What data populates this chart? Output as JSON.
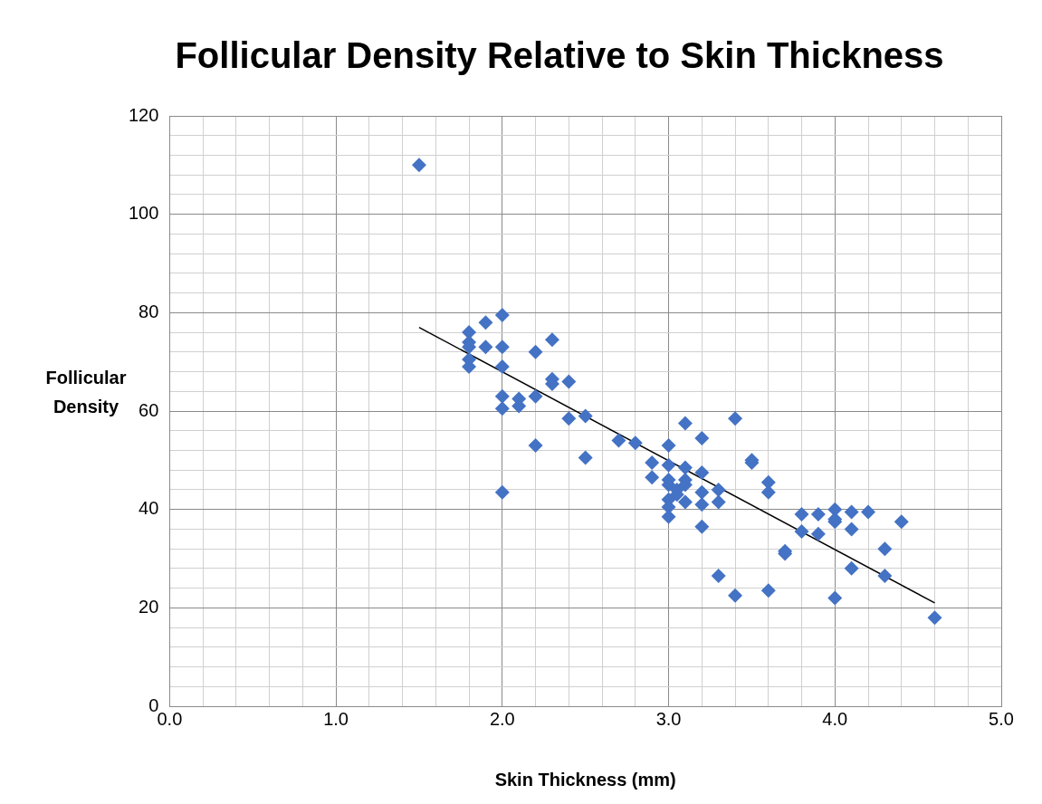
{
  "chart_data": {
    "type": "scatter",
    "title": "Follicular Density Relative to Skin Thickness",
    "xlabel": "Skin Thickness (mm)",
    "ylabel": "Follicular Density",
    "xlim": [
      0,
      5
    ],
    "ylim": [
      0,
      120
    ],
    "xticks": [
      {
        "value": 0,
        "label": "0.0"
      },
      {
        "value": 0.2,
        "label": null
      },
      {
        "value": 0.4,
        "label": null
      },
      {
        "value": 0.6,
        "label": null
      },
      {
        "value": 0.8,
        "label": null
      },
      {
        "value": 1,
        "label": "1.0"
      },
      {
        "value": 1.2,
        "label": null
      },
      {
        "value": 1.4,
        "label": null
      },
      {
        "value": 1.6,
        "label": null
      },
      {
        "value": 1.8,
        "label": null
      },
      {
        "value": 2,
        "label": "2.0"
      },
      {
        "value": 2.2,
        "label": null
      },
      {
        "value": 2.4,
        "label": null
      },
      {
        "value": 2.6,
        "label": null
      },
      {
        "value": 2.8,
        "label": null
      },
      {
        "value": 3,
        "label": "3.0"
      },
      {
        "value": 3.2,
        "label": null
      },
      {
        "value": 3.4,
        "label": null
      },
      {
        "value": 3.6,
        "label": null
      },
      {
        "value": 3.8,
        "label": null
      },
      {
        "value": 4,
        "label": "4.0"
      },
      {
        "value": 4.2,
        "label": null
      },
      {
        "value": 4.4,
        "label": null
      },
      {
        "value": 4.6,
        "label": null
      },
      {
        "value": 4.8,
        "label": null
      },
      {
        "value": 5,
        "label": "5.0"
      }
    ],
    "yticks": [
      0,
      {
        "value": 4,
        "label": null
      },
      {
        "value": 8,
        "label": null
      },
      {
        "value": 12,
        "label": null
      },
      {
        "value": 16,
        "label": null
      },
      20,
      {
        "value": 24,
        "label": null
      },
      {
        "value": 28,
        "label": null
      },
      {
        "value": 32,
        "label": null
      },
      {
        "value": 36,
        "label": null
      },
      40,
      {
        "value": 44,
        "label": null
      },
      {
        "value": 48,
        "label": null
      },
      {
        "value": 52,
        "label": null
      },
      {
        "value": 56,
        "label": null
      },
      60,
      {
        "value": 64,
        "label": null
      },
      {
        "value": 68,
        "label": null
      },
      {
        "value": 72,
        "label": null
      },
      {
        "value": 76,
        "label": null
      },
      80,
      {
        "value": 84,
        "label": null
      },
      {
        "value": 88,
        "label": null
      },
      {
        "value": 92,
        "label": null
      },
      {
        "value": 96,
        "label": null
      },
      100,
      {
        "value": 104,
        "label": null
      },
      {
        "value": 108,
        "label": null
      },
      {
        "value": 112,
        "label": null
      },
      {
        "value": 116,
        "label": null
      },
      120
    ],
    "grid": true,
    "legend": false,
    "series": [
      {
        "type": "scatter",
        "color": "#4472c4",
        "marker": "diamond",
        "x": [
          1.5,
          1.8,
          1.8,
          1.8,
          1.8,
          1.8,
          1.9,
          1.9,
          2.0,
          2.0,
          2.0,
          2.0,
          2.0,
          2.0,
          2.1,
          2.1,
          2.2,
          2.2,
          2.2,
          2.3,
          2.3,
          2.3,
          2.4,
          2.4,
          2.5,
          2.5,
          2.7,
          2.8,
          2.9,
          2.9,
          3.0,
          3.0,
          3.0,
          3.0,
          3.0,
          3.0,
          3.0,
          3.05,
          3.05,
          3.1,
          3.1,
          3.1,
          3.1,
          3.1,
          3.2,
          3.2,
          3.2,
          3.2,
          3.2,
          3.3,
          3.3,
          3.3,
          3.4,
          3.4,
          3.5,
          3.5,
          3.6,
          3.6,
          3.6,
          3.7,
          3.7,
          3.8,
          3.8,
          3.9,
          3.9,
          4.0,
          4.0,
          4.0,
          4.0,
          4.1,
          4.1,
          4.1,
          4.2,
          4.3,
          4.3,
          4.4,
          4.6
        ],
        "values": [
          110,
          76,
          74,
          73,
          70.5,
          69,
          78,
          73,
          79.5,
          73,
          69,
          63,
          60.5,
          43.5,
          62.5,
          61,
          72,
          63,
          53,
          74.5,
          66.5,
          65.5,
          66,
          58.5,
          59,
          50.5,
          54,
          53.5,
          49.5,
          46.5,
          53,
          49,
          46,
          45,
          42,
          40.5,
          38.5,
          44,
          43,
          57.5,
          48.5,
          46,
          45,
          41.5,
          54.5,
          47.5,
          43.5,
          41,
          36.5,
          44,
          41.5,
          26.5,
          58.5,
          22.5,
          50,
          49.5,
          45.5,
          43.5,
          23.5,
          31.5,
          31,
          39,
          35.5,
          39,
          35,
          40,
          38,
          37.5,
          22,
          39.5,
          36,
          28,
          39.5,
          32,
          26.5,
          37.5,
          18
        ]
      },
      {
        "type": "line",
        "color": "#000000",
        "marker": "none",
        "line_style": "solid",
        "x": [
          1.5,
          4.6
        ],
        "values": [
          77,
          21
        ]
      }
    ]
  }
}
